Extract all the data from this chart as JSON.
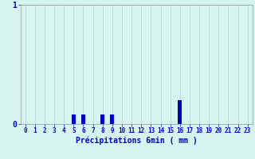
{
  "title": "",
  "xlabel": "Précipitations 6min ( mm )",
  "hours": [
    0,
    1,
    2,
    3,
    4,
    5,
    6,
    7,
    8,
    9,
    10,
    11,
    12,
    13,
    14,
    15,
    16,
    17,
    18,
    19,
    20,
    21,
    22,
    23
  ],
  "values": [
    0,
    0,
    0,
    0,
    0,
    0.08,
    0.08,
    0,
    0.08,
    0.08,
    0,
    0,
    0,
    0,
    0,
    0,
    0.2,
    0,
    0,
    0,
    0,
    0,
    0,
    0
  ],
  "bar_color": "#0000cc",
  "bg_color": "#d6f5f0",
  "grid_color": "#b0d0d0",
  "axis_color": "#0000cc",
  "tick_color": "#0000cc",
  "label_color": "#0000cc",
  "ylim": [
    0,
    1.0
  ],
  "ytick_labels": [
    "0",
    "1"
  ],
  "ytick_vals": [
    0,
    1
  ],
  "xlim": [
    -0.5,
    23.5
  ],
  "bar_width": 0.4
}
